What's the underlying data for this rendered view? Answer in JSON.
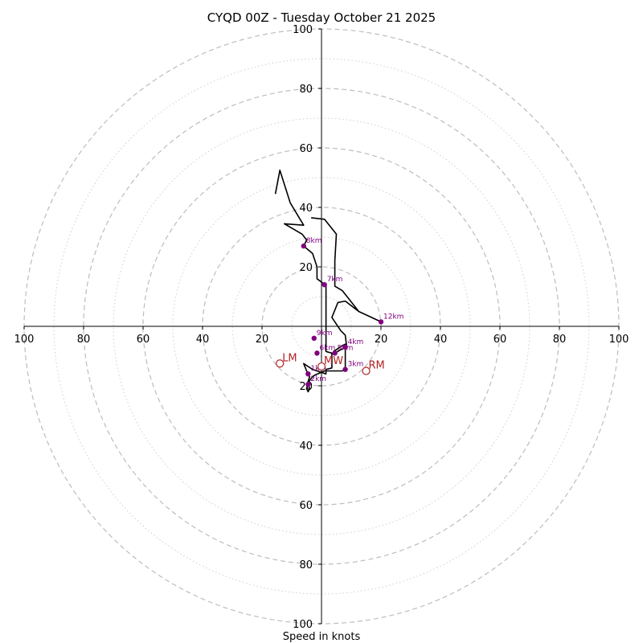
{
  "chart_data": {
    "type": "hodograph",
    "title": "CYQD 00Z - Tuesday October 21 2025",
    "xlabel": "Speed in knots",
    "units": "knots",
    "range": [
      -100,
      100
    ],
    "ring_major": [
      20,
      40,
      60,
      80,
      100
    ],
    "ring_minor": [
      10,
      30,
      50,
      70,
      90
    ],
    "tick_values": [
      100,
      80,
      60,
      40,
      20
    ],
    "tick_labels": [
      "100",
      "80",
      "60",
      "40",
      "20"
    ],
    "trace_color": "#000000",
    "height_color": "#800080",
    "motion_color": "#b22222",
    "trace": [
      [
        -15.5,
        44.5
      ],
      [
        -14,
        52.5
      ],
      [
        -10.5,
        41.5
      ],
      [
        -6,
        34
      ],
      [
        -12.5,
        34.5
      ],
      [
        -6.5,
        31
      ],
      [
        -5,
        29
      ],
      [
        -6,
        27
      ],
      [
        -3,
        24.5
      ],
      [
        -1.5,
        20
      ],
      [
        -1.5,
        16
      ],
      [
        0.5,
        14.5
      ],
      [
        1.5,
        13.5
      ],
      [
        1.5,
        10
      ],
      [
        1.5,
        -1
      ],
      [
        1.5,
        -8.5
      ],
      [
        3.5,
        -9
      ],
      [
        3.5,
        -12
      ],
      [
        3.5,
        -14
      ],
      [
        1.5,
        -14.5
      ],
      [
        1.5,
        -16
      ],
      [
        -3,
        -14.5
      ],
      [
        -6,
        -12.5
      ],
      [
        -5,
        -15
      ],
      [
        -4.5,
        -16
      ],
      [
        -4,
        -17
      ],
      [
        -4.5,
        -18.5
      ],
      [
        -5,
        -21
      ],
      [
        -4.5,
        -22
      ],
      [
        -4,
        -21
      ],
      [
        -4.5,
        -19
      ],
      [
        -3.5,
        -17.5
      ],
      [
        -2.5,
        -16.5
      ],
      [
        1,
        -15
      ],
      [
        7,
        -15
      ],
      [
        8,
        -14.5
      ],
      [
        8,
        -13
      ],
      [
        8,
        -12
      ],
      [
        8,
        -10.5
      ],
      [
        8,
        -7
      ],
      [
        4.5,
        -9
      ],
      [
        4,
        -8.5
      ],
      [
        7,
        -6.5
      ],
      [
        8,
        -6
      ],
      [
        8.5,
        -7
      ],
      [
        8,
        -3
      ],
      [
        6.5,
        -1.5
      ],
      [
        3.5,
        3
      ],
      [
        5.5,
        8
      ],
      [
        8,
        8.5
      ],
      [
        12.5,
        5
      ],
      [
        20,
        1.5
      ],
      [
        12.5,
        5
      ],
      [
        9,
        9.5
      ],
      [
        7,
        12
      ],
      [
        4.5,
        13.5
      ],
      [
        4.5,
        22
      ],
      [
        5,
        31
      ],
      [
        1,
        36
      ],
      [
        -3.5,
        36.5
      ]
    ],
    "heights": [
      {
        "label": "1km",
        "u": -4.5,
        "v": -16
      },
      {
        "label": "2km",
        "u": -4.5,
        "v": -19.5
      },
      {
        "label": "3km",
        "u": 8,
        "v": -14.5
      },
      {
        "label": "4km",
        "u": 8,
        "v": -7
      },
      {
        "label": "5km",
        "u": 4.5,
        "v": -9
      },
      {
        "label": "6km",
        "u": -1.5,
        "v": -9
      },
      {
        "label": "7km",
        "u": 1,
        "v": 14
      },
      {
        "label": "8km",
        "u": -6,
        "v": 27
      },
      {
        "label": "9km",
        "u": -2.5,
        "v": -4
      },
      {
        "label": "12km",
        "u": 20,
        "v": 1.5
      }
    ],
    "motions": [
      {
        "label": "LM",
        "u": -14,
        "v": -12.5
      },
      {
        "label": "RM",
        "u": 15,
        "v": -15
      },
      {
        "label": "MW",
        "u": 0,
        "v": -13.5
      }
    ]
  }
}
